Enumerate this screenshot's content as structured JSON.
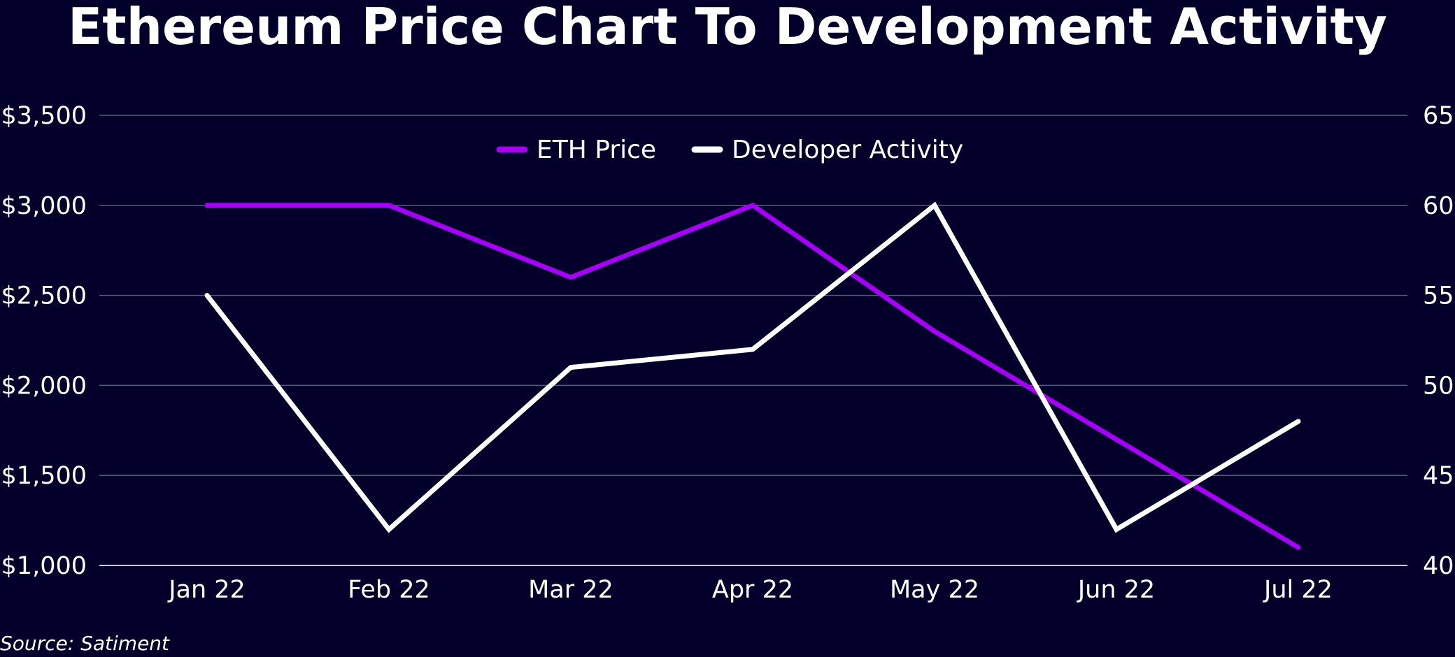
{
  "title": "Ethereum Price Chart To Development Activity",
  "source": "Source: Satiment",
  "colors": {
    "background": "#02002a",
    "eth_line": "#a300f5",
    "dev_line": "#ffffff",
    "grid": "#5a5a7a",
    "text": "#ffffff"
  },
  "chart_data": {
    "type": "line",
    "title": "Ethereum Price Chart To Development Activity",
    "categories": [
      "Jan 22",
      "Feb 22",
      "Mar 22",
      "Apr 22",
      "May 22",
      "Jun 22",
      "Jul 22"
    ],
    "series": [
      {
        "name": "ETH Price",
        "axis": "left",
        "color": "#a300f5",
        "values": [
          3000,
          3000,
          2600,
          3000,
          2300,
          1700,
          1100
        ]
      },
      {
        "name": "Developer Activity",
        "axis": "right",
        "color": "#ffffff",
        "values": [
          55,
          42,
          51,
          52,
          60,
          42,
          48
        ]
      }
    ],
    "y_left": {
      "range": [
        1000,
        3500
      ],
      "ticks": [
        1000,
        1500,
        2000,
        2500,
        3000,
        3500
      ],
      "tick_labels": [
        "$1,000",
        "$1,500",
        "$2,000",
        "$2,500",
        "$3,000",
        "$3,500"
      ]
    },
    "y_right": {
      "range": [
        40,
        65
      ],
      "ticks": [
        40,
        45,
        50,
        55,
        60,
        65
      ],
      "tick_labels": [
        "40",
        "45",
        "50",
        "55",
        "60",
        "65"
      ]
    },
    "xlabel": "",
    "ylabel": "",
    "grid": true,
    "legend": "top-center"
  }
}
